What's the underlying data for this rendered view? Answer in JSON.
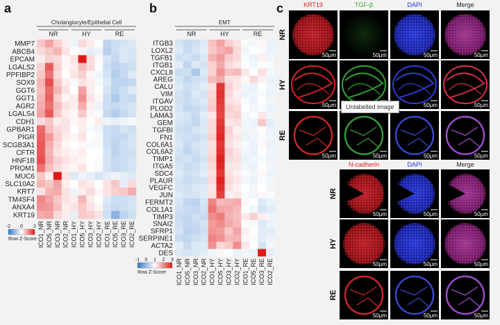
{
  "panel_a": {
    "letter": "a",
    "title": "Cholangiocyte/Epithelial Cell",
    "groups": [
      "NR",
      "HY",
      "RE"
    ],
    "genes": [
      "MMP7",
      "ABCB4",
      "EPCAM",
      "LGALS2",
      "PPFIBP2",
      "SOX9",
      "GGT6",
      "GGT1",
      "AGR2",
      "LGALS4",
      "CDH1",
      "GPBAR1",
      "PIGR",
      "SCGB3A1",
      "CFTR",
      "HNF1B",
      "PROM1",
      "MUC6",
      "SLC10A2",
      "KRT7",
      "TM4SF4",
      "ANXA4",
      "KRT19"
    ],
    "columns": [
      "ICO1_NR",
      "ICO5_NR",
      "ICO3_NR",
      "ICO2_NR",
      "ICO1_HY",
      "ICO5_HY",
      "ICO3_HY",
      "ICO2_HY",
      "ICO1_RE",
      "ICO5_RE",
      "ICO3_RE",
      "ICO2_RE"
    ],
    "key_ticks": [
      "-2",
      "0",
      "2"
    ],
    "key_label": "Row Z-Score",
    "values": [
      [
        0.6,
        1.0,
        0.5,
        0.2,
        -0.2,
        0.4,
        0.2,
        0.0,
        -0.8,
        -0.6,
        -0.5,
        -0.4
      ],
      [
        0.4,
        0.6,
        0.8,
        0.3,
        0.0,
        0.1,
        -0.3,
        -0.2,
        -0.9,
        -0.6,
        -0.4,
        -0.5
      ],
      [
        0.2,
        0.5,
        0.4,
        0.1,
        0.3,
        2.5,
        0.4,
        0.1,
        -0.5,
        -0.7,
        -0.4,
        -0.5
      ],
      [
        0.5,
        1.8,
        0.5,
        0.1,
        0.2,
        0.7,
        0.4,
        0.0,
        -0.6,
        -0.8,
        -0.7,
        -0.6
      ],
      [
        0.6,
        1.5,
        0.4,
        0.0,
        0.3,
        0.5,
        0.1,
        -0.2,
        -0.5,
        -0.9,
        -0.7,
        -0.4
      ],
      [
        0.8,
        1.9,
        0.6,
        0.2,
        -0.1,
        0.3,
        0.2,
        -0.1,
        -0.4,
        -0.8,
        -0.8,
        -0.7
      ],
      [
        0.7,
        1.6,
        0.8,
        0.3,
        0.0,
        1.0,
        0.2,
        0.0,
        -0.5,
        -0.8,
        -0.6,
        -0.4
      ],
      [
        0.8,
        1.7,
        0.5,
        0.1,
        0.2,
        1.2,
        0.3,
        0.1,
        -0.6,
        -1.0,
        -0.6,
        -0.7
      ],
      [
        0.9,
        1.5,
        0.7,
        0.3,
        0.2,
        0.9,
        0.2,
        -0.2,
        -0.6,
        -0.7,
        -0.6,
        -0.5
      ],
      [
        1.0,
        1.8,
        0.6,
        0.2,
        0.1,
        0.6,
        0.1,
        -0.1,
        -0.7,
        -0.9,
        -0.7,
        -0.5
      ],
      [
        0.4,
        0.6,
        0.2,
        0.3,
        0.1,
        0.2,
        0.0,
        0.2,
        -0.2,
        -0.3,
        -0.2,
        -0.1
      ],
      [
        1.6,
        0.7,
        0.4,
        0.3,
        0.0,
        0.2,
        -0.1,
        -0.2,
        -0.6,
        -0.7,
        -0.5,
        -0.6
      ],
      [
        1.7,
        1.1,
        0.5,
        0.2,
        0.1,
        0.3,
        0.0,
        -0.1,
        -0.6,
        -0.7,
        -0.7,
        -0.5
      ],
      [
        1.8,
        0.9,
        0.4,
        0.1,
        0.0,
        0.1,
        -0.1,
        -0.1,
        -0.6,
        -0.8,
        -0.6,
        -0.5
      ],
      [
        1.8,
        0.8,
        0.3,
        0.2,
        0.1,
        0.2,
        0.0,
        0.0,
        -0.5,
        -0.8,
        -0.6,
        -0.6
      ],
      [
        1.9,
        0.9,
        0.5,
        0.3,
        0.2,
        0.1,
        0.0,
        -0.1,
        -0.5,
        -0.7,
        -0.6,
        -0.5
      ],
      [
        1.5,
        0.7,
        0.4,
        0.2,
        0.1,
        0.3,
        0.0,
        -0.1,
        -0.5,
        -0.7,
        -0.6,
        -0.5
      ],
      [
        0.6,
        0.2,
        2.6,
        0.3,
        -0.4,
        -0.2,
        -0.3,
        -0.5,
        -0.3,
        -0.2,
        -0.3,
        -0.4
      ],
      [
        0.8,
        0.6,
        1.0,
        0.2,
        0.0,
        0.3,
        0.2,
        0.0,
        0.3,
        0.6,
        -0.3,
        0.4
      ],
      [
        0.3,
        0.8,
        0.9,
        0.3,
        -0.2,
        0.2,
        0.4,
        0.1,
        0.3,
        0.5,
        0.6,
        0.9
      ],
      [
        1.3,
        1.0,
        0.6,
        0.3,
        0.2,
        0.8,
        0.2,
        0.0,
        -0.4,
        -0.6,
        -0.6,
        -0.5
      ],
      [
        1.2,
        1.1,
        0.7,
        0.2,
        0.3,
        0.6,
        0.3,
        0.1,
        -0.5,
        -0.7,
        -0.6,
        -0.5
      ],
      [
        0.9,
        1.0,
        0.4,
        0.2,
        -0.3,
        0.6,
        0.5,
        0.3,
        -0.6,
        -1.4,
        -0.8,
        -0.6
      ]
    ]
  },
  "panel_b": {
    "letter": "b",
    "title": "EMT",
    "groups": [
      "NR",
      "HY",
      "RE"
    ],
    "genes": [
      "ITGB3",
      "LOXL2",
      "TGFB1",
      "ITGB1",
      "CXCL8",
      "AREG",
      "CALU",
      "VIM",
      "ITGAV",
      "PLOD2",
      "LAMA3",
      "GEM",
      "TGFBI",
      "FN1",
      "COL6A1",
      "COL6A2",
      "TIMP1",
      "ITGA5",
      "SDC4",
      "PLAUR",
      "VEGFC",
      "JUN",
      "FERMT2",
      "COL1A1",
      "TIMP3",
      "SNAI2",
      "SFRP1",
      "SERPINE1",
      "ACTA2",
      "DES"
    ],
    "columns": [
      "ICO1_NR",
      "ICO5_NR",
      "ICO3_NR",
      "ICO2_NR",
      "ICO1_HY",
      "ICO5_HY",
      "ICO3_HY",
      "ICO2_HY",
      "ICO1_RE",
      "ICO5_RE",
      "ICO3_RE",
      "ICO2_RE"
    ],
    "key_ticks": [
      "-1",
      "0",
      "1",
      "2",
      "3"
    ],
    "key_label": "Row Z-Score",
    "values": [
      [
        -0.6,
        -0.8,
        -0.7,
        -0.5,
        0.8,
        1.2,
        0.6,
        0.4,
        -0.1,
        -0.2,
        0.1,
        -0.3
      ],
      [
        -0.5,
        -0.8,
        -0.6,
        -0.4,
        0.7,
        1.0,
        1.2,
        0.5,
        -0.2,
        0.0,
        -0.1,
        -0.3
      ],
      [
        -0.7,
        -0.6,
        -0.8,
        -0.5,
        1.0,
        1.3,
        0.7,
        0.5,
        -0.1,
        -0.3,
        0.2,
        -0.2
      ],
      [
        -0.4,
        -0.9,
        -0.5,
        -0.6,
        0.6,
        1.1,
        0.5,
        0.3,
        0.0,
        -0.2,
        0.0,
        -0.1
      ],
      [
        -0.8,
        -0.7,
        -1.2,
        -0.5,
        0.6,
        1.4,
        0.8,
        0.9,
        0.3,
        0.0,
        0.4,
        -0.2
      ],
      [
        -0.6,
        -0.9,
        -0.7,
        -0.6,
        0.9,
        1.1,
        0.4,
        0.3,
        0.1,
        0.5,
        0.2,
        -0.3
      ],
      [
        -0.5,
        -0.7,
        -0.6,
        -0.4,
        0.4,
        2.6,
        0.6,
        0.3,
        -0.2,
        -0.3,
        0.0,
        -0.2
      ],
      [
        -0.6,
        -0.8,
        -0.5,
        -0.6,
        0.5,
        2.7,
        0.5,
        0.2,
        -0.3,
        -0.2,
        -0.1,
        -0.3
      ],
      [
        -0.7,
        -0.8,
        -0.6,
        -0.5,
        0.6,
        2.6,
        0.4,
        0.3,
        -0.1,
        -0.3,
        0.0,
        -0.2
      ],
      [
        -0.6,
        -0.9,
        -0.8,
        -0.6,
        0.7,
        2.5,
        0.6,
        0.5,
        0.0,
        -0.2,
        -0.1,
        -0.3
      ],
      [
        -0.5,
        -0.6,
        -0.8,
        -0.4,
        0.3,
        2.4,
        0.5,
        0.6,
        -0.2,
        -0.1,
        0.3,
        -0.2
      ],
      [
        -0.6,
        -0.7,
        -0.9,
        -0.5,
        0.5,
        2.6,
        0.3,
        0.4,
        -0.2,
        -0.3,
        0.7,
        -0.4
      ],
      [
        -0.7,
        -0.8,
        -0.6,
        -0.5,
        0.5,
        2.7,
        0.6,
        0.2,
        -0.2,
        -0.2,
        0.0,
        -0.3
      ],
      [
        -0.6,
        -0.7,
        -0.8,
        -0.6,
        0.6,
        2.8,
        0.5,
        0.3,
        -0.3,
        -0.2,
        -0.1,
        -0.2
      ],
      [
        -0.5,
        -0.8,
        -0.6,
        -0.5,
        0.4,
        2.6,
        0.4,
        0.2,
        -0.1,
        -0.3,
        0.1,
        -0.3
      ],
      [
        -0.6,
        -0.9,
        -0.7,
        -0.5,
        0.5,
        2.7,
        0.6,
        0.3,
        -0.2,
        -0.3,
        0.0,
        -0.2
      ],
      [
        -0.7,
        -0.6,
        -0.8,
        -0.6,
        0.6,
        2.9,
        0.5,
        0.4,
        -0.3,
        -0.2,
        -0.1,
        -0.3
      ],
      [
        -0.6,
        -0.8,
        -0.7,
        -0.5,
        0.5,
        2.8,
        0.3,
        0.3,
        -0.2,
        -0.3,
        0.0,
        -0.2
      ],
      [
        -0.5,
        -0.7,
        -0.6,
        -0.4,
        0.4,
        2.6,
        0.4,
        0.2,
        -0.1,
        -0.2,
        0.1,
        -0.3
      ],
      [
        -0.6,
        -0.8,
        -0.7,
        -0.6,
        0.5,
        2.9,
        0.5,
        0.3,
        -0.2,
        -0.3,
        -0.1,
        -0.2
      ],
      [
        -0.6,
        -0.7,
        -0.5,
        -0.5,
        0.3,
        2.7,
        0.4,
        0.2,
        0.0,
        -0.2,
        0.0,
        -0.2
      ],
      [
        -0.5,
        -0.6,
        -0.6,
        -0.4,
        0.4,
        2.5,
        0.2,
        0.3,
        -0.1,
        -0.2,
        0.1,
        -0.1
      ],
      [
        -0.6,
        -0.9,
        -1.0,
        -0.6,
        1.6,
        0.9,
        1.0,
        1.1,
        0.1,
        0.0,
        -0.5,
        -0.3
      ],
      [
        -0.7,
        -0.8,
        -0.9,
        -0.7,
        1.8,
        1.2,
        1.1,
        0.9,
        0.0,
        -0.2,
        -0.6,
        -0.4
      ],
      [
        -0.8,
        -0.9,
        -0.7,
        -0.8,
        1.5,
        1.7,
        1.0,
        0.8,
        0.3,
        0.6,
        0.2,
        -0.2
      ],
      [
        -0.7,
        -0.9,
        -0.8,
        -0.6,
        1.3,
        1.5,
        1.1,
        0.9,
        0.0,
        -0.1,
        -0.5,
        -0.3
      ],
      [
        -0.6,
        -1.0,
        -0.9,
        -0.7,
        1.4,
        1.3,
        0.7,
        1.2,
        0.2,
        0.0,
        -0.4,
        -0.4
      ],
      [
        -0.8,
        -0.9,
        -0.7,
        -0.6,
        1.6,
        1.4,
        0.9,
        1.0,
        0.1,
        -0.1,
        -0.4,
        -0.3
      ],
      [
        -0.4,
        -0.8,
        -0.5,
        -0.5,
        1.4,
        0.5,
        0.7,
        1.5,
        0.3,
        0.0,
        -0.6,
        -0.2
      ],
      [
        -0.5,
        -0.6,
        -0.5,
        -0.4,
        -0.2,
        0.1,
        0.0,
        -0.3,
        -0.2,
        -0.3,
        3.0,
        -0.4
      ]
    ]
  },
  "panel_c": {
    "letter": "c",
    "top_headers": [
      {
        "text": "KRT19",
        "color": "#e02020"
      },
      {
        "text": "TGF-β",
        "color": "#2fa52f"
      },
      {
        "text": "DAPI",
        "color": "#2030d0"
      },
      {
        "text": "Merge",
        "color": "#222222"
      }
    ],
    "bottom_headers": [
      {
        "text": "N-cadherin",
        "color": "#e02020"
      },
      {
        "text": "DAPI",
        "color": "#2030d0"
      },
      {
        "text": "Merge",
        "color": "#222222"
      }
    ],
    "rows": [
      "NR",
      "HY",
      "RE"
    ],
    "scale_bar": "50μm",
    "tooltip": "Unlabelled image"
  }
}
